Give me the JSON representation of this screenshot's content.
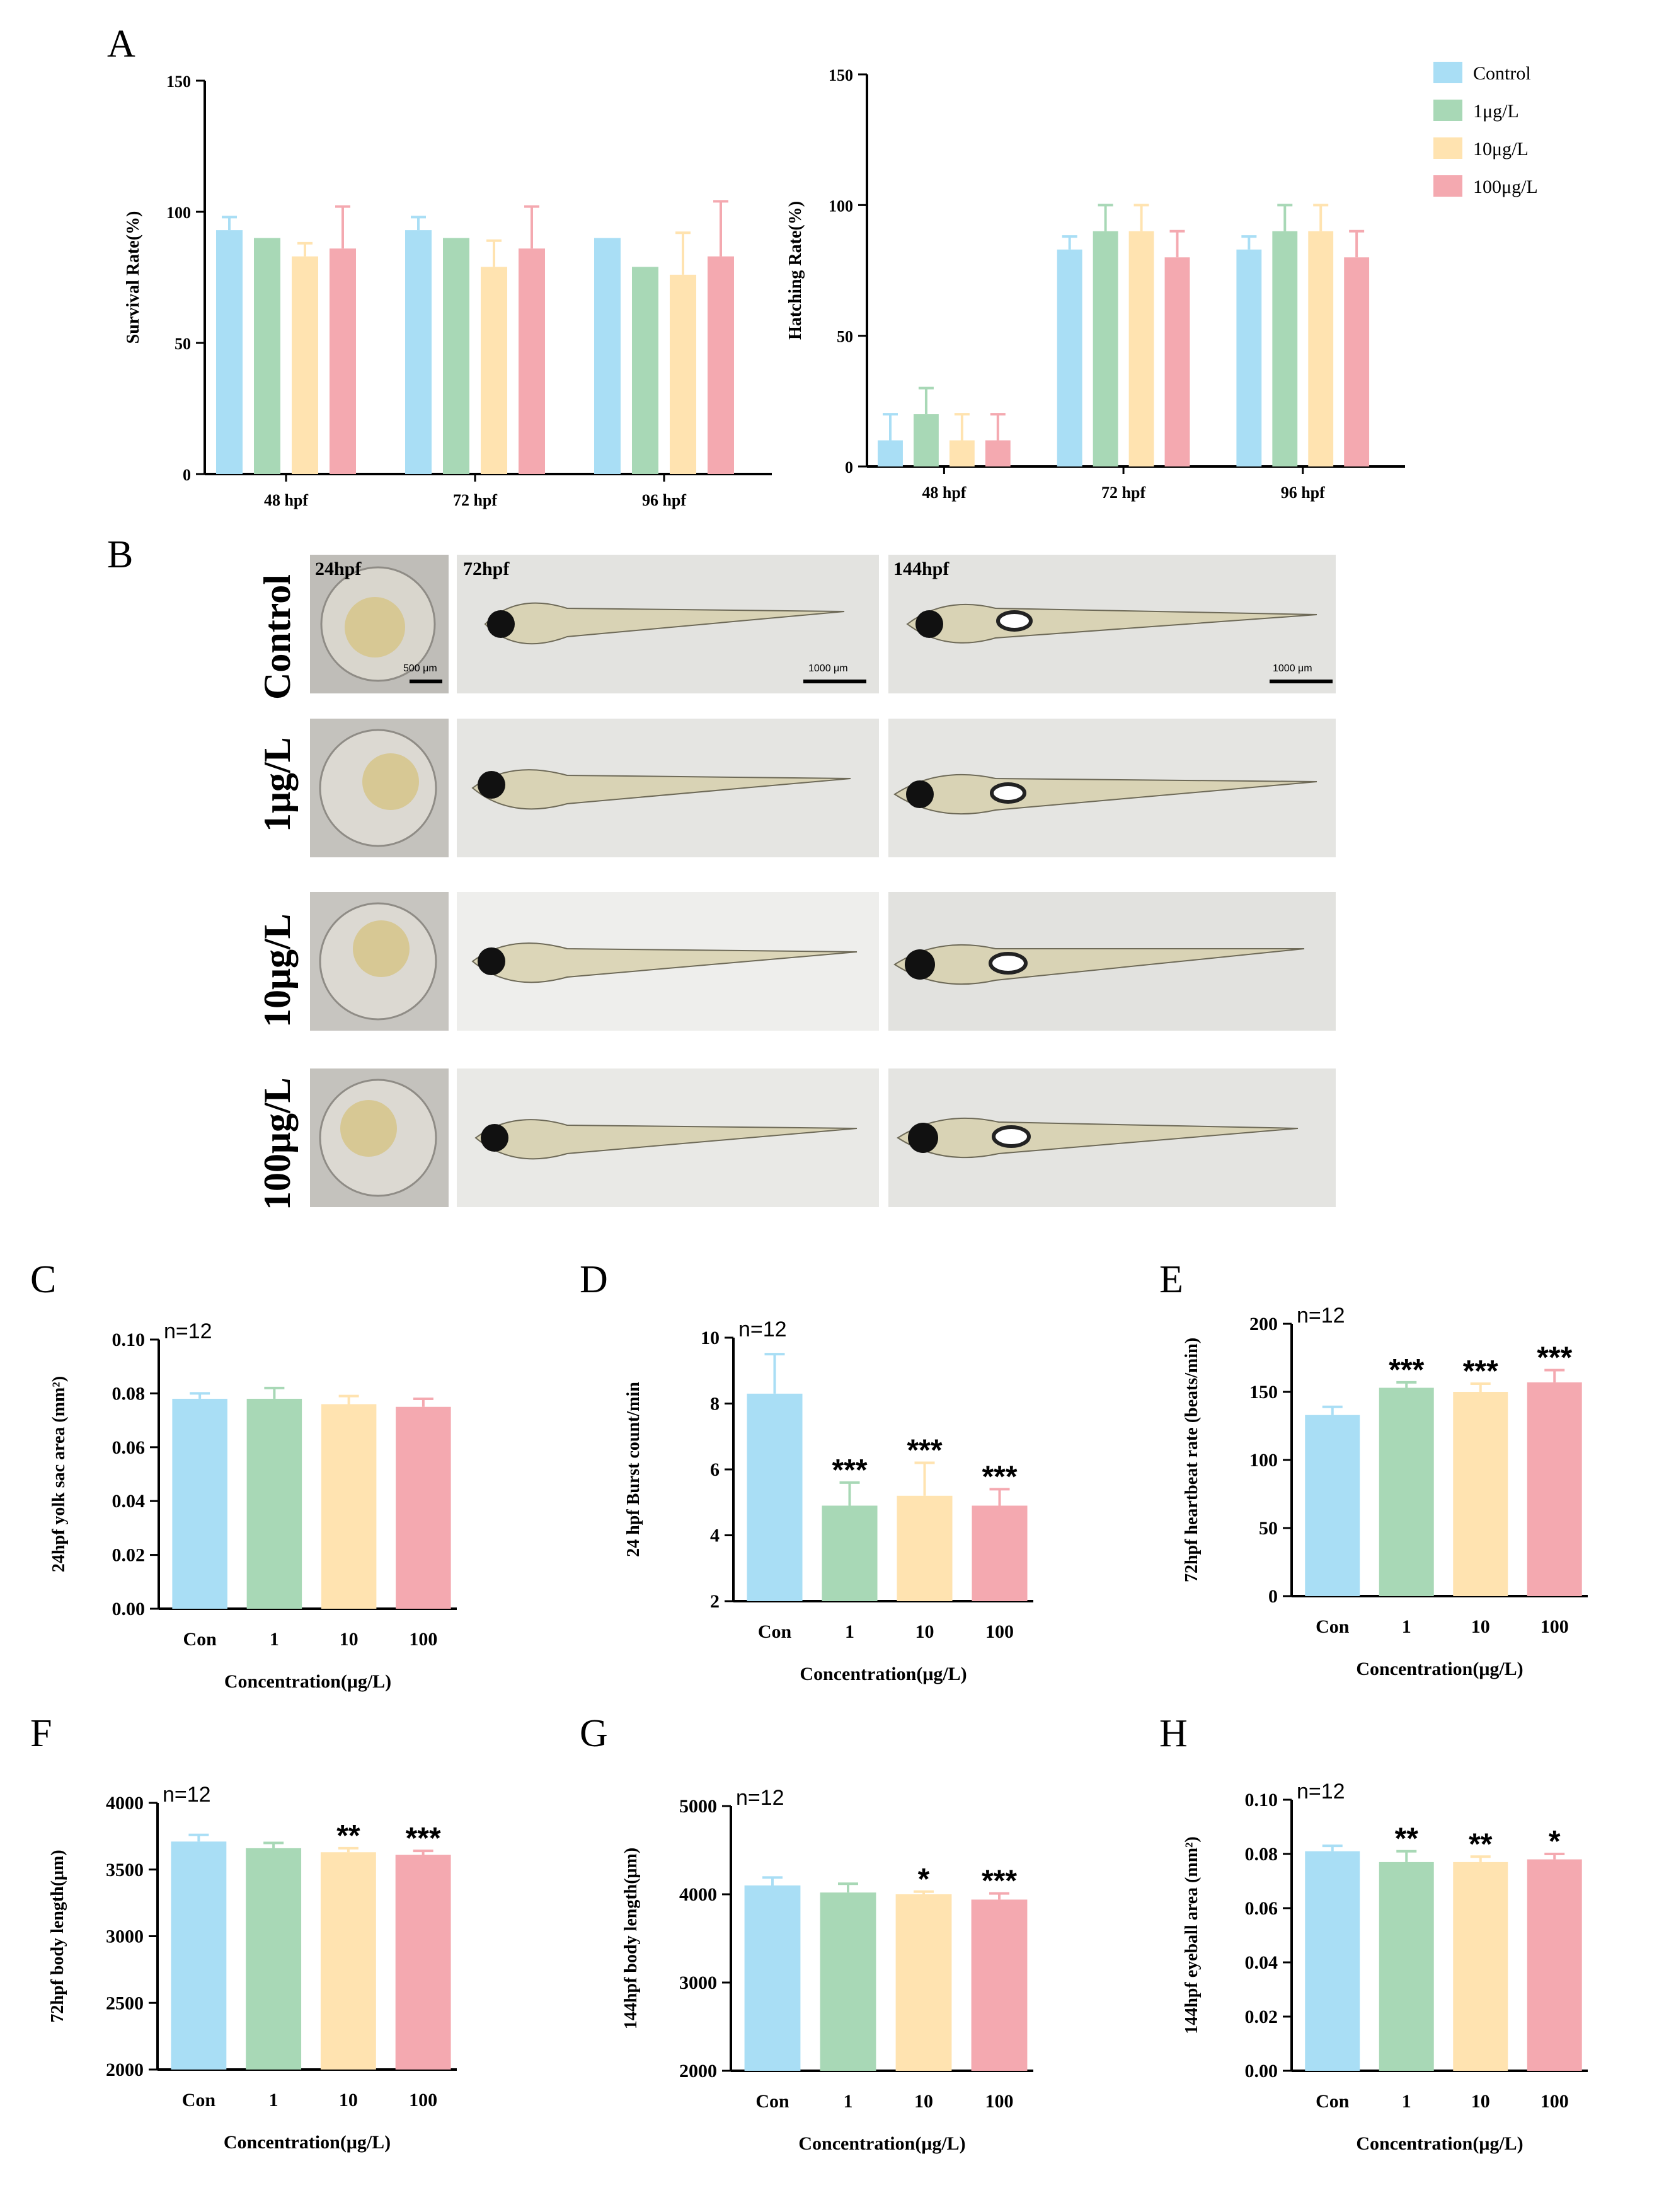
{
  "colors": {
    "control": "#a9def5",
    "c1": "#a8d8b6",
    "c10": "#ffe3b0",
    "c100": "#f4a9b0",
    "axis": "#000000"
  },
  "panels": {
    "A": "A",
    "B": "B",
    "C": "C",
    "D": "D",
    "E": "E",
    "F": "F",
    "G": "G",
    "H": "H"
  },
  "legend": [
    "Control",
    "1μg/L",
    "10μg/L",
    "100μg/L"
  ],
  "microscopy": {
    "timepoints": [
      "24hpf",
      "72hpf",
      "144hpf"
    ],
    "rows": [
      "Control",
      "1μg/L",
      "10μg/L",
      "100μg/L"
    ],
    "scale_bars": [
      "500 μm",
      "1000 μm",
      "1000 μm"
    ]
  },
  "chart_data": [
    {
      "id": "A1",
      "type": "bar",
      "ylabel": "Survival Rate(%)",
      "xlabel": "",
      "categories": [
        "48 hpf",
        "72 hpf",
        "96 hpf"
      ],
      "ylim": [
        0,
        150
      ],
      "yticks": [
        0,
        50,
        100,
        150
      ],
      "series": [
        {
          "name": "Control",
          "values": [
            93,
            93,
            90
          ],
          "errors": [
            5,
            5,
            0
          ]
        },
        {
          "name": "1μg/L",
          "values": [
            90,
            90,
            79
          ],
          "errors": [
            0,
            0,
            0
          ]
        },
        {
          "name": "10μg/L",
          "values": [
            83,
            79,
            76
          ],
          "errors": [
            5,
            10,
            16
          ]
        },
        {
          "name": "100μg/L",
          "values": [
            86,
            86,
            83
          ],
          "errors": [
            16,
            16,
            21
          ]
        }
      ]
    },
    {
      "id": "A2",
      "type": "bar",
      "ylabel": "Hatching Rate(%)",
      "xlabel": "",
      "categories": [
        "48 hpf",
        "72 hpf",
        "96 hpf"
      ],
      "ylim": [
        0,
        150
      ],
      "yticks": [
        0,
        50,
        100,
        150
      ],
      "series": [
        {
          "name": "Control",
          "values": [
            10,
            83,
            83
          ],
          "errors": [
            10,
            5,
            5
          ]
        },
        {
          "name": "1μg/L",
          "values": [
            20,
            90,
            90
          ],
          "errors": [
            10,
            10,
            10
          ]
        },
        {
          "name": "10μg/L",
          "values": [
            10,
            90,
            90
          ],
          "errors": [
            10,
            10,
            10
          ]
        },
        {
          "name": "100μg/L",
          "values": [
            10,
            80,
            80
          ],
          "errors": [
            10,
            10,
            10
          ]
        }
      ]
    },
    {
      "id": "C",
      "type": "bar",
      "n": "n=12",
      "ylabel": "24hpf yolk sac area (mm²)",
      "xlabel": "Concentration(μg/L)",
      "categories": [
        "Con",
        "1",
        "10",
        "100"
      ],
      "ylim": [
        0,
        0.1
      ],
      "yticks": [
        "0.00",
        "0.02",
        "0.04",
        "0.06",
        "0.08",
        "0.10"
      ],
      "values": [
        0.078,
        0.078,
        0.076,
        0.075
      ],
      "errors": [
        0.002,
        0.004,
        0.003,
        0.003
      ],
      "significance": [
        "",
        "",
        "",
        ""
      ]
    },
    {
      "id": "D",
      "type": "bar",
      "n": "n=12",
      "ylabel": "24 hpf Burst count/min",
      "xlabel": "Concentration(μg/L)",
      "categories": [
        "Con",
        "1",
        "10",
        "100"
      ],
      "ylim": [
        2,
        10
      ],
      "yticks": [
        "2",
        "4",
        "6",
        "8",
        "10"
      ],
      "values": [
        8.3,
        4.9,
        5.2,
        4.9
      ],
      "errors": [
        1.2,
        0.7,
        1.0,
        0.5
      ],
      "significance": [
        "",
        "***",
        "***",
        "***"
      ]
    },
    {
      "id": "E",
      "type": "bar",
      "n": "n=12",
      "ylabel": "72hpf heartbeat rate (beats/min)",
      "xlabel": "Concentration(μg/L)",
      "categories": [
        "Con",
        "1",
        "10",
        "100"
      ],
      "ylim": [
        0,
        200
      ],
      "yticks": [
        "0",
        "50",
        "100",
        "150",
        "200"
      ],
      "values": [
        133,
        153,
        150,
        157
      ],
      "errors": [
        6,
        4,
        6,
        9
      ],
      "significance": [
        "",
        "***",
        "***",
        "***"
      ]
    },
    {
      "id": "F",
      "type": "bar",
      "n": "n=12",
      "ylabel": "72hpf body length(μm)",
      "xlabel": "Concentration(μg/L)",
      "categories": [
        "Con",
        "1",
        "10",
        "100"
      ],
      "ylim": [
        2000,
        4000
      ],
      "yticks": [
        "2000",
        "2500",
        "3000",
        "3500",
        "4000"
      ],
      "values": [
        3710,
        3660,
        3630,
        3610
      ],
      "errors": [
        50,
        40,
        30,
        30
      ],
      "significance": [
        "",
        "",
        "**",
        "***"
      ]
    },
    {
      "id": "G",
      "type": "bar",
      "n": "n=12",
      "ylabel": "144hpf body length(μm)",
      "xlabel": "Concentration(μg/L)",
      "categories": [
        "Con",
        "1",
        "10",
        "100"
      ],
      "ylim": [
        2000,
        5000
      ],
      "yticks": [
        "2000",
        "3000",
        "4000",
        "5000"
      ],
      "values": [
        4100,
        4020,
        4000,
        3940
      ],
      "errors": [
        90,
        100,
        30,
        70
      ],
      "significance": [
        "",
        "",
        "*",
        "***"
      ]
    },
    {
      "id": "H",
      "type": "bar",
      "n": "n=12",
      "ylabel": "144hpf eyeball area (mm²)",
      "xlabel": "Concentration(μg/L)",
      "categories": [
        "Con",
        "1",
        "10",
        "100"
      ],
      "ylim": [
        0,
        0.1
      ],
      "yticks": [
        "0.00",
        "0.02",
        "0.04",
        "0.06",
        "0.08",
        "0.10"
      ],
      "values": [
        0.081,
        0.077,
        0.077,
        0.078
      ],
      "errors": [
        0.002,
        0.004,
        0.002,
        0.002
      ],
      "significance": [
        "",
        "**",
        "**",
        "*"
      ]
    }
  ]
}
